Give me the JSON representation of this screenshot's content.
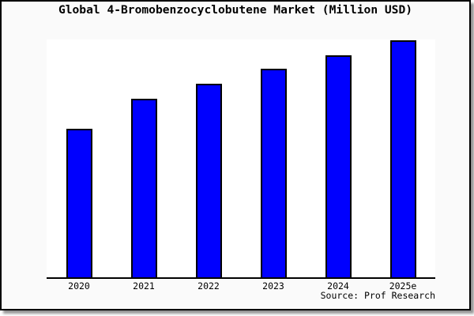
{
  "window": {
    "background_color": "#fafafa",
    "border_color": "#000000",
    "plot_background_color": "#ffffff"
  },
  "chart_data": {
    "type": "bar",
    "title": "Global 4-Bromobenzocyclobutene Market (Million USD)",
    "categories": [
      "2020",
      "2021",
      "2022",
      "2023",
      "2024",
      "2025e"
    ],
    "values": [
      62.7,
      75.3,
      81.7,
      88.0,
      93.7,
      100.0
    ],
    "values_note": "no numeric y-axis shown in chart; values are relative bar heights normalized to 2025e = 100",
    "ymax": 100.3,
    "xlabel": "",
    "ylabel": "",
    "grid": false,
    "legend": false,
    "y_axis_visible": false,
    "x_axis_line_color": "#000000",
    "bar_color": "#0000fe",
    "bar_border_color": "#000000"
  },
  "source": {
    "text": "Source: Prof Research"
  }
}
